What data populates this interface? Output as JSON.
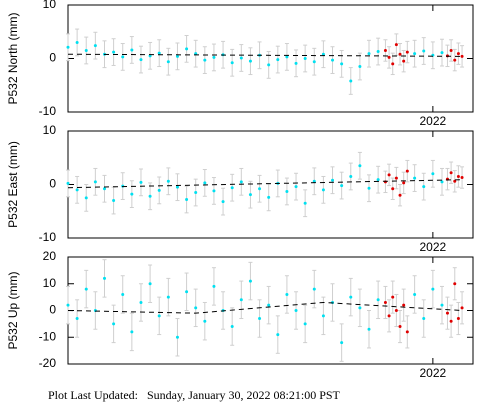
{
  "chart_data": [
    {
      "type": "scatter",
      "ylabel": "P532 North (mm)",
      "xlim": [
        2021.0,
        2022.11
      ],
      "xticks": [
        2022
      ],
      "ylim": [
        -10,
        10
      ],
      "yticks": [
        -10,
        0,
        10
      ],
      "series": [
        {
          "color": "#00e0f0",
          "error": 2.5,
          "x": [
            2021.0,
            2021.025,
            2021.05,
            2021.075,
            2021.1,
            2021.125,
            2021.15,
            2021.175,
            2021.2,
            2021.225,
            2021.25,
            2021.275,
            2021.3,
            2021.325,
            2021.35,
            2021.375,
            2021.4,
            2021.425,
            2021.45,
            2021.475,
            2021.5,
            2021.525,
            2021.55,
            2021.575,
            2021.6,
            2021.625,
            2021.65,
            2021.675,
            2021.7,
            2021.725,
            2021.75,
            2021.775,
            2021.8,
            2021.825,
            2021.85,
            2021.95,
            2021.975,
            2022.0,
            2022.025
          ],
          "values": [
            2.1,
            3.0,
            1.5,
            2.4,
            0.8,
            1.2,
            0.3,
            1.6,
            -0.2,
            0.5,
            1.0,
            -0.6,
            0.4,
            1.8,
            0.9,
            -0.3,
            0.2,
            0.7,
            -0.8,
            0.1,
            -0.5,
            0.6,
            -1.2,
            -0.2,
            0.3,
            -0.9,
            0.0,
            -0.6,
            0.8,
            -0.3,
            -1.0,
            -4.2,
            -1.5,
            0.9,
            1.3,
            0.9,
            1.4,
            0.6,
            1.1
          ]
        },
        {
          "color": "#e00000",
          "error": 2,
          "x": [
            2021.87,
            2021.88,
            2021.89,
            2021.9,
            2021.91,
            2021.92,
            2021.93,
            2022.04,
            2022.05,
            2022.06,
            2022.07,
            2022.08
          ],
          "values": [
            1.5,
            0.2,
            -1.0,
            2.6,
            0.8,
            -0.5,
            1.2,
            0.5,
            1.5,
            -0.3,
            0.9,
            0.4
          ]
        }
      ],
      "trend": {
        "color": "#000000",
        "x": [
          2021.0,
          2022.08
        ],
        "values": [
          0.8,
          0.4
        ]
      }
    },
    {
      "type": "scatter",
      "ylabel": "P532 East (mm)",
      "xlim": [
        2021.0,
        2022.11
      ],
      "xticks": [
        2022
      ],
      "ylim": [
        -10,
        10
      ],
      "yticks": [
        -10,
        0,
        10
      ],
      "series": [
        {
          "color": "#00e0f0",
          "error": 2.5,
          "x": [
            2021.0,
            2021.025,
            2021.05,
            2021.075,
            2021.1,
            2021.125,
            2021.15,
            2021.175,
            2021.2,
            2021.225,
            2021.25,
            2021.275,
            2021.3,
            2021.325,
            2021.35,
            2021.375,
            2021.4,
            2021.425,
            2021.45,
            2021.475,
            2021.5,
            2021.525,
            2021.55,
            2021.575,
            2021.6,
            2021.625,
            2021.65,
            2021.675,
            2021.7,
            2021.725,
            2021.75,
            2021.775,
            2021.8,
            2021.825,
            2021.85,
            2021.95,
            2021.975,
            2022.0,
            2022.025
          ],
          "values": [
            0.2,
            -1.0,
            -2.5,
            0.5,
            -0.8,
            -3.0,
            -0.3,
            -1.8,
            0.4,
            -2.2,
            -1.1,
            0.6,
            -0.5,
            -2.8,
            -1.5,
            0.3,
            -1.2,
            -3.2,
            -0.6,
            0.5,
            -1.9,
            -0.8,
            -2.4,
            0.2,
            -1.3,
            -0.4,
            -3.5,
            0.6,
            -1.0,
            0.8,
            -0.2,
            1.5,
            3.5,
            -0.7,
            0.9,
            1.2,
            -0.4,
            2.0,
            0.5
          ]
        },
        {
          "color": "#e00000",
          "error": 2,
          "x": [
            2021.87,
            2021.88,
            2021.89,
            2021.9,
            2021.91,
            2021.92,
            2021.93,
            2022.04,
            2022.05,
            2022.06,
            2022.07,
            2022.08
          ],
          "values": [
            0.5,
            1.8,
            -0.8,
            1.2,
            -2.0,
            0.3,
            2.5,
            1.0,
            2.2,
            0.6,
            1.5,
            1.3
          ]
        }
      ],
      "trend": {
        "color": "#000000",
        "x": [
          2021.0,
          2022.08
        ],
        "values": [
          -0.6,
          0.9
        ]
      }
    },
    {
      "type": "scatter",
      "ylabel": "P532 Up (mm)",
      "xlim": [
        2021.0,
        2022.11
      ],
      "xticks": [
        2022
      ],
      "ylim": [
        -20,
        20
      ],
      "yticks": [
        -20,
        -10,
        0,
        10,
        20
      ],
      "series": [
        {
          "color": "#00e0f0",
          "error": 7,
          "x": [
            2021.0,
            2021.025,
            2021.05,
            2021.075,
            2021.1,
            2021.125,
            2021.15,
            2021.175,
            2021.2,
            2021.225,
            2021.25,
            2021.275,
            2021.3,
            2021.325,
            2021.35,
            2021.375,
            2021.4,
            2021.425,
            2021.45,
            2021.475,
            2021.5,
            2021.525,
            2021.55,
            2021.575,
            2021.6,
            2021.625,
            2021.65,
            2021.675,
            2021.7,
            2021.725,
            2021.75,
            2021.775,
            2021.8,
            2021.825,
            2021.85,
            2021.95,
            2021.975,
            2022.0,
            2022.025
          ],
          "values": [
            2,
            -3,
            8,
            0,
            12,
            -5,
            6,
            -8,
            3,
            10,
            -2,
            5,
            -10,
            7,
            1,
            -4,
            9,
            0,
            -6,
            4,
            11,
            -3,
            2,
            -9,
            6,
            0,
            -5,
            8,
            -2,
            3,
            -12,
            5,
            1,
            -7,
            4,
            6,
            -3,
            8,
            2
          ]
        },
        {
          "color": "#e00000",
          "error": 6,
          "x": [
            2021.87,
            2021.88,
            2021.89,
            2021.9,
            2021.91,
            2021.92,
            2021.93,
            2022.04,
            2022.05,
            2022.06,
            2022.07,
            2022.08
          ],
          "values": [
            3,
            -2,
            5,
            0,
            -6,
            2,
            -8,
            -1,
            -4,
            10,
            -3,
            1
          ]
        }
      ],
      "trend": {
        "color": "#000000",
        "x": [
          2021.0,
          2021.35,
          2021.7,
          2022.08
        ],
        "values": [
          0,
          -1,
          3,
          0
        ]
      }
    }
  ],
  "footer": "Plot Last Updated:   Sunday, January 30, 2022 08:21:00 PST"
}
